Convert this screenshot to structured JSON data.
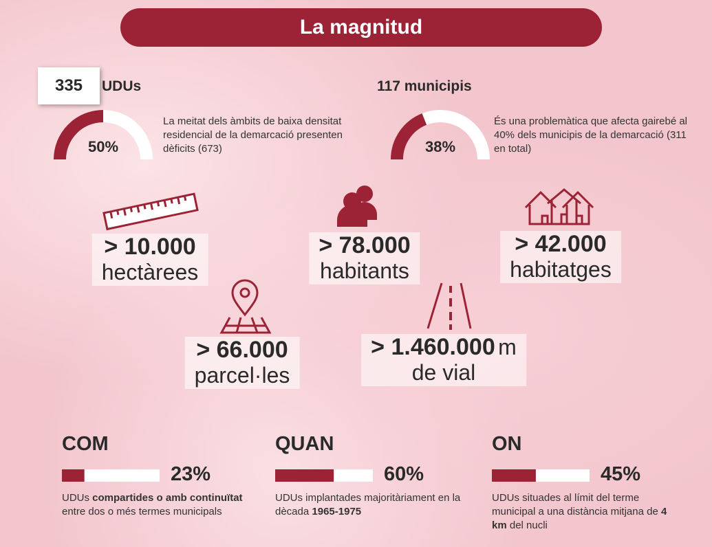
{
  "title": "La magnitud",
  "gauges": [
    {
      "count": "335",
      "label": "UDUs",
      "value": 50,
      "value_label": "50%",
      "description": "La meitat dels àmbits de baixa densitat residencial de la demarcació presenten dèficits (673)"
    },
    {
      "label": "117 municipis",
      "value": 38,
      "value_label": "38%",
      "description": "És una problemàtica que afecta gairebé al 40% dels municipis de la demarcació (311 en total)"
    }
  ],
  "figures": [
    {
      "value": "> 10.000",
      "unit": "hectàrees"
    },
    {
      "value": "> 78.000",
      "unit": "habitants"
    },
    {
      "value": "> 42.000",
      "unit": "habitatges"
    },
    {
      "value": "> 66.000",
      "unit": "parcel·les"
    },
    {
      "value": "> 1.460.000",
      "suffix": "m",
      "unit": "de vial"
    }
  ],
  "bars": [
    {
      "heading": "COM",
      "value": 23,
      "value_label": "23%",
      "description": [
        {
          "text": "UDUs "
        },
        {
          "text": "compartides o amb continuïtat",
          "bold": true
        },
        {
          "text": " entre dos o més termes municipals"
        }
      ]
    },
    {
      "heading": "QUAN",
      "value": 60,
      "value_label": "60%",
      "description": [
        {
          "text": "UDUs implantades majoritàriament en la dècada "
        },
        {
          "text": "1965-1975",
          "bold": true
        }
      ]
    },
    {
      "heading": "ON",
      "value": 45,
      "value_label": "45%",
      "description": [
        {
          "text": "UDUs situades al límit del terme municipal a una distància mitjana de "
        },
        {
          "text": "4 km",
          "bold": true
        },
        {
          "text": " del nucli"
        }
      ]
    }
  ]
}
